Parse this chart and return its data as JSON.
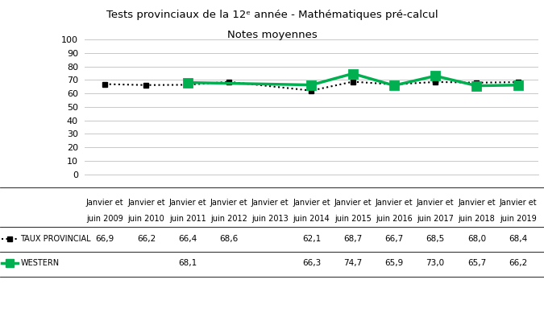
{
  "title_line1": "Tests provinciaux de la 12ᵉ année - Mathématiques pré-calcul",
  "title_line2": "Notes moyennes",
  "categories": [
    "Janvier et\njuin 2009",
    "Janvier et\njuin 2010",
    "Janvier et\njuin 2011",
    "Janvier et\njuin 2012",
    "Janvier et\njuin 2013",
    "Janvier et\njuin 2014",
    "Janvier et\njuin 2015",
    "Janvier et\njuin 2016",
    "Janvier et\njuin 2017",
    "Janvier et\njuin 2018",
    "Janvier et\njuin 2019"
  ],
  "provincial": [
    66.9,
    66.2,
    66.4,
    68.6,
    null,
    62.1,
    68.7,
    66.7,
    68.5,
    68.0,
    68.4
  ],
  "western": [
    null,
    null,
    68.1,
    null,
    null,
    66.3,
    74.7,
    65.9,
    73.0,
    65.7,
    66.2
  ],
  "provincial_color": "#000000",
  "western_color": "#00b050",
  "background_color": "#ffffff",
  "ylim": [
    0,
    100
  ],
  "yticks": [
    0,
    10,
    20,
    30,
    40,
    50,
    60,
    70,
    80,
    90,
    100
  ],
  "legend_provincial": "TAUX PROVINCIAL",
  "legend_western": "WESTERN",
  "table_provincial": [
    "66,9",
    "66,2",
    "66,4",
    "68,6",
    "",
    "62,1",
    "68,7",
    "66,7",
    "68,5",
    "68,0",
    "68,4"
  ],
  "table_western": [
    "",
    "",
    "68,1",
    "",
    "",
    "66,3",
    "74,7",
    "65,9",
    "73,0",
    "65,7",
    "66,2"
  ],
  "cat_line2": [
    "juin 2009",
    "juin 2010",
    "juin 2011",
    "juin 2012",
    "juin 2013",
    "juin 2014",
    "juin 2015",
    "juin 2016",
    "juin 2017",
    "juin 2018",
    "juin 2019"
  ]
}
